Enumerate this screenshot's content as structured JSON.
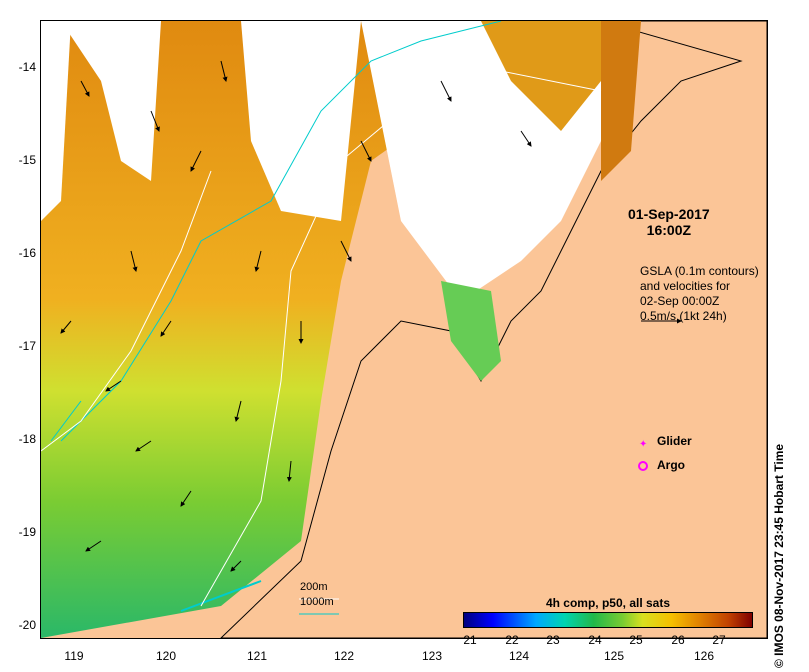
{
  "map": {
    "date": "01-Sep-2017",
    "time": "16:00Z",
    "gsla_lines": [
      "GSLA (0.1m contours)",
      "and velocities for",
      "02-Sep 00:00Z",
      "0.5m/s (1kt 24h)"
    ],
    "legend": {
      "glider": "Glider",
      "argo": "Argo"
    },
    "colorbar": {
      "title": "4h comp, p50, all sats",
      "ticks": [
        "21",
        "22",
        "23",
        "24",
        "25",
        "26",
        "27"
      ]
    },
    "scale": {
      "line1": "200m",
      "line2": "1000m"
    },
    "copyright": "© IMOS 08-Nov-2017 23:45 Hobart Time",
    "lat_ticks": [
      "-14",
      "-15",
      "-16",
      "-17",
      "-18",
      "-19",
      "-20"
    ],
    "lon_ticks": [
      "119",
      "120",
      "121",
      "122",
      "123",
      "124",
      "125",
      "126"
    ],
    "colors": {
      "land": "#fbc597",
      "shelf200": "#ffffff",
      "iso1000": "#00cccc",
      "glider": "#ff00ff"
    }
  }
}
